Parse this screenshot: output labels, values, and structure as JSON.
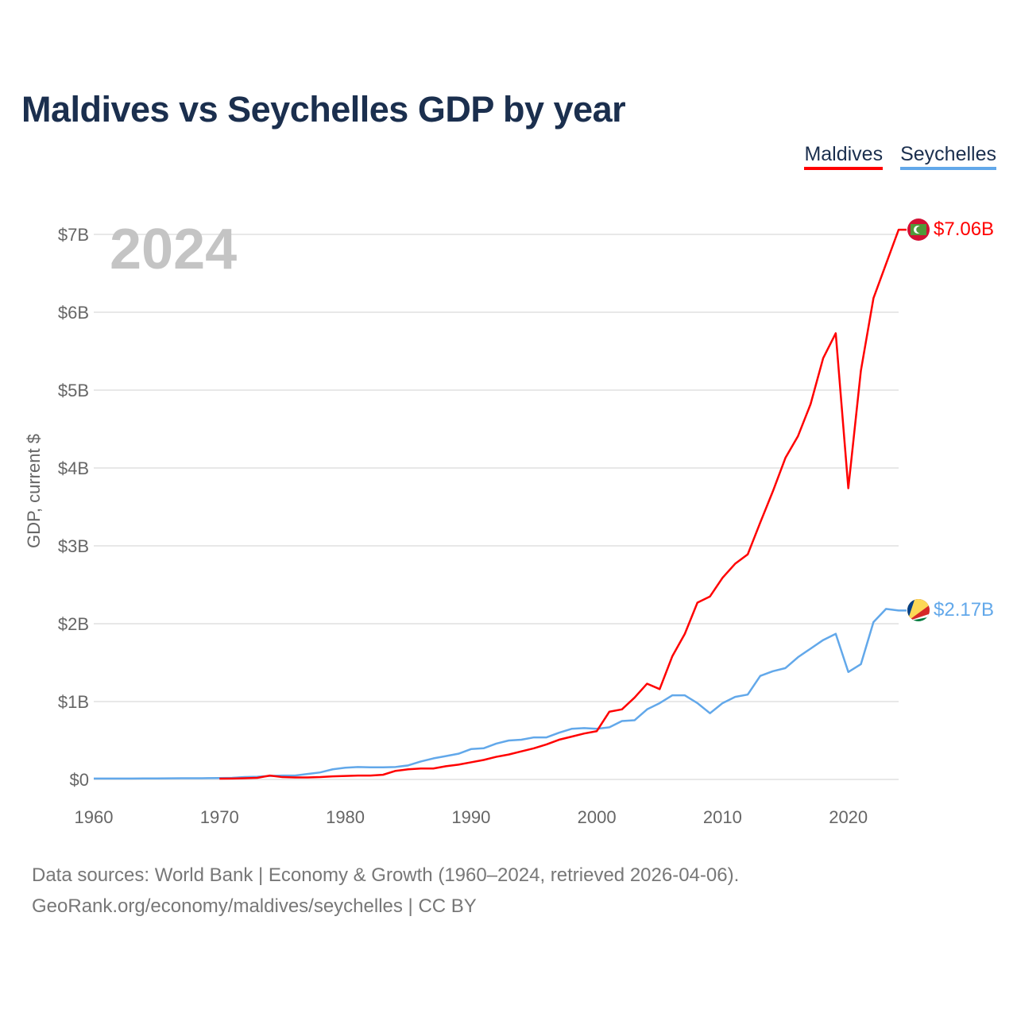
{
  "title": "Maldives vs Seychelles GDP by year",
  "legend": [
    {
      "label": "Maldives",
      "color": "#ff0000"
    },
    {
      "label": "Seychelles",
      "color": "#62a8ea"
    }
  ],
  "year_watermark": "2024",
  "end_labels": {
    "maldives": "$7.06B",
    "seychelles": "$2.17B"
  },
  "flags": {
    "maldives": "maldives-flag-icon",
    "seychelles": "seychelles-flag-icon"
  },
  "footer": {
    "line1": "Data sources: World Bank | Economy & Growth (1960–2024, retrieved 2026-04-06).",
    "line2": "GeoRank.org/economy/maldives/seychelles | CC BY"
  },
  "chart_data": {
    "type": "line",
    "title": "Maldives vs Seychelles GDP by year",
    "xlabel": "",
    "ylabel": "GDP, current $",
    "xlim": [
      1960,
      2024
    ],
    "ylim": [
      0,
      7
    ],
    "y_unit": "billion USD",
    "grid": true,
    "legend_position": "top-right",
    "x_ticks": [
      1960,
      1970,
      1980,
      1990,
      2000,
      2010,
      2020
    ],
    "x_tick_labels": [
      "1960",
      "1970",
      "1980",
      "1990",
      "2000",
      "2010",
      "2020"
    ],
    "y_ticks": [
      0,
      1,
      2,
      3,
      4,
      5,
      6,
      7
    ],
    "y_tick_labels": [
      "$0",
      "$1B",
      "$2B",
      "$3B",
      "$4B",
      "$5B",
      "$6B",
      "$7B"
    ],
    "series": [
      {
        "name": "Maldives",
        "color": "#ff0000",
        "start_year": 1970,
        "values": [
          0.01,
          0.012,
          0.015,
          0.02,
          0.05,
          0.03,
          0.025,
          0.025,
          0.03,
          0.04,
          0.045,
          0.05,
          0.05,
          0.06,
          0.11,
          0.13,
          0.14,
          0.14,
          0.17,
          0.19,
          0.22,
          0.25,
          0.29,
          0.32,
          0.36,
          0.4,
          0.45,
          0.51,
          0.55,
          0.59,
          0.62,
          0.87,
          0.9,
          1.05,
          1.23,
          1.16,
          1.58,
          1.87,
          2.27,
          2.35,
          2.59,
          2.77,
          2.89,
          3.3,
          3.7,
          4.13,
          4.41,
          4.82,
          5.41,
          5.73,
          3.74,
          5.25,
          6.18,
          6.62,
          7.06
        ]
      },
      {
        "name": "Seychelles",
        "color": "#62a8ea",
        "start_year": 1960,
        "values": [
          0.012,
          0.012,
          0.012,
          0.012,
          0.013,
          0.013,
          0.014,
          0.015,
          0.015,
          0.016,
          0.018,
          0.02,
          0.03,
          0.035,
          0.045,
          0.05,
          0.05,
          0.07,
          0.09,
          0.13,
          0.15,
          0.16,
          0.155,
          0.155,
          0.16,
          0.18,
          0.23,
          0.27,
          0.3,
          0.33,
          0.39,
          0.4,
          0.46,
          0.5,
          0.51,
          0.54,
          0.54,
          0.6,
          0.65,
          0.66,
          0.65,
          0.67,
          0.75,
          0.76,
          0.9,
          0.98,
          1.08,
          1.08,
          0.98,
          0.85,
          0.98,
          1.06,
          1.09,
          1.33,
          1.39,
          1.43,
          1.57,
          1.68,
          1.79,
          1.87,
          1.38,
          1.48,
          2.02,
          2.19,
          2.17
        ]
      }
    ]
  }
}
